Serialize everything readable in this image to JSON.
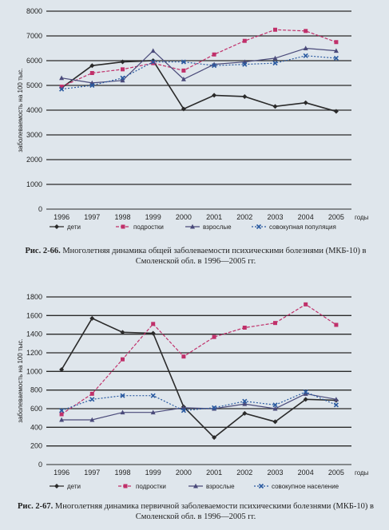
{
  "chart_data": [
    {
      "type": "line",
      "ylabel": "заболеваемость на 100 тыс.",
      "xlabel": "годы",
      "ylim": [
        0,
        8000
      ],
      "yticks": [
        0,
        1000,
        2000,
        3000,
        4000,
        5000,
        6000,
        7000,
        8000
      ],
      "categories": [
        "1996",
        "1997",
        "1998",
        "1999",
        "2000",
        "2001",
        "2002",
        "2003",
        "2004",
        "2005"
      ],
      "legend_position": "bottom",
      "series": [
        {
          "name": "дети",
          "color": "#2a2a2a",
          "values": [
            4900,
            5800,
            5950,
            6000,
            4050,
            4600,
            4550,
            4150,
            4300,
            3950
          ]
        },
        {
          "name": "подростки",
          "color": "#c0306a",
          "values": [
            4950,
            5500,
            5650,
            5900,
            5600,
            6250,
            6800,
            7250,
            7200,
            6750
          ]
        },
        {
          "name": "взрослые",
          "color": "#4a4a7a",
          "values": [
            5300,
            5100,
            5200,
            6400,
            5250,
            5850,
            5950,
            6100,
            6500,
            6400
          ]
        },
        {
          "name": "совокупная популяция",
          "color": "#2a5aa0",
          "values": [
            4850,
            5000,
            5300,
            5950,
            5950,
            5800,
            5850,
            5900,
            6200,
            6100
          ]
        }
      ]
    },
    {
      "type": "line",
      "ylabel": "заболеваемость на 100 тыс.",
      "xlabel": "годы",
      "ylim": [
        0,
        1800
      ],
      "yticks": [
        0,
        200,
        400,
        600,
        800,
        1000,
        1200,
        1400,
        1600,
        1800
      ],
      "categories": [
        "1996",
        "1997",
        "1998",
        "1999",
        "2000",
        "2001",
        "2002",
        "2003",
        "2004",
        "2005"
      ],
      "legend_position": "bottom",
      "series": [
        {
          "name": "дети",
          "color": "#2a2a2a",
          "values": [
            1020,
            1570,
            1420,
            1410,
            620,
            290,
            550,
            460,
            700,
            690
          ]
        },
        {
          "name": "подростки",
          "color": "#c0306a",
          "values": [
            540,
            760,
            1130,
            1510,
            1160,
            1370,
            1470,
            1520,
            1720,
            1500
          ]
        },
        {
          "name": "взрослые",
          "color": "#4a4a7a",
          "values": [
            480,
            480,
            560,
            560,
            610,
            600,
            650,
            600,
            760,
            700
          ]
        },
        {
          "name": "совокупное население",
          "color": "#2a5aa0",
          "values": [
            580,
            700,
            740,
            740,
            580,
            610,
            680,
            640,
            780,
            640
          ]
        }
      ]
    }
  ],
  "captions": [
    {
      "label": "Рис. 2-66.",
      "text": "Многолетняя динамика общей заболеваемости психическими болезнями (МКБ-10) в Смоленской обл. в 1996—2005 гг."
    },
    {
      "label": "Рис. 2-67.",
      "text": "Многолетняя динамика первичной заболеваемости психическими болезнями (МКБ-10) в Смоленской обл. в 1996—2005 гг."
    }
  ]
}
